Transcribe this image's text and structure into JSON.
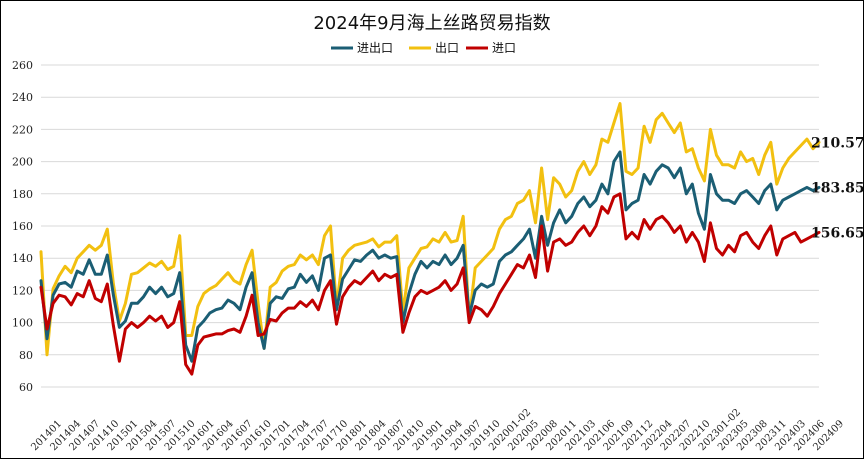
{
  "chart_data": {
    "type": "line",
    "title": "2024年9月海上丝路贸易指数",
    "xlabel": "",
    "ylabel": "",
    "ylim": [
      60,
      260
    ],
    "yticks": [
      60,
      80,
      100,
      120,
      140,
      160,
      180,
      200,
      220,
      240,
      260
    ],
    "grid": true,
    "legend_position": "top",
    "x_tick_labels": [
      "201401",
      "201404",
      "201407",
      "201410",
      "201501",
      "201504",
      "201507",
      "201510",
      "201601",
      "201604",
      "201607",
      "201610",
      "201701",
      "201704",
      "201707",
      "201710",
      "201801",
      "201804",
      "201807",
      "201810",
      "201901",
      "201904",
      "201907",
      "201910",
      "202001-02",
      "202005",
      "202008",
      "202011",
      "202103",
      "202106",
      "202109",
      "202112",
      "202204",
      "202207",
      "202210",
      "202301-02",
      "202305",
      "202308",
      "202311",
      "202403",
      "202406",
      "202409"
    ],
    "series": [
      {
        "name": "进出口",
        "color": "#1b5e74",
        "end_label": "183.85",
        "values": [
          126,
          90,
          117,
          124,
          125,
          122,
          132,
          130,
          139,
          130,
          130,
          142,
          117,
          97,
          101,
          112,
          112,
          116,
          122,
          118,
          122,
          116,
          118,
          131,
          86,
          76,
          97,
          101,
          106,
          108,
          109,
          114,
          112,
          108,
          122,
          131,
          100,
          84,
          112,
          116,
          115,
          121,
          122,
          130,
          125,
          129,
          120,
          140,
          142,
          108,
          127,
          133,
          139,
          138,
          142,
          145,
          140,
          142,
          140,
          141,
          100,
          118,
          130,
          138,
          134,
          138,
          136,
          142,
          136,
          140,
          148,
          104,
          120,
          124,
          122,
          124,
          138,
          142,
          144,
          148,
          152,
          158,
          140,
          166,
          148,
          162,
          170,
          162,
          166,
          174,
          178,
          172,
          176,
          186,
          180,
          200,
          206,
          170,
          174,
          176,
          192,
          186,
          194,
          198,
          196,
          190,
          196,
          180,
          186,
          168,
          158,
          192,
          180,
          176,
          176,
          174,
          180,
          182,
          178,
          174,
          182,
          186,
          170,
          176,
          178,
          180,
          182,
          184,
          182,
          184
        ]
      },
      {
        "name": "出口",
        "color": "#f2c010",
        "end_label": "210.57",
        "values": [
          144,
          80,
          121,
          129,
          135,
          131,
          140,
          144,
          148,
          145,
          148,
          158,
          124,
          101,
          112,
          130,
          131,
          134,
          137,
          135,
          138,
          133,
          135,
          154,
          92,
          92,
          110,
          118,
          121,
          123,
          127,
          131,
          126,
          124,
          136,
          145,
          112,
          84,
          122,
          125,
          132,
          135,
          136,
          142,
          139,
          142,
          136,
          154,
          160,
          110,
          140,
          145,
          148,
          149,
          150,
          152,
          147,
          150,
          150,
          154,
          106,
          134,
          140,
          146,
          147,
          152,
          150,
          156,
          150,
          151,
          166,
          102,
          134,
          138,
          142,
          146,
          158,
          164,
          166,
          174,
          176,
          182,
          162,
          196,
          164,
          190,
          186,
          178,
          182,
          194,
          200,
          192,
          198,
          214,
          212,
          224,
          236,
          194,
          192,
          196,
          222,
          212,
          226,
          230,
          224,
          218,
          224,
          206,
          208,
          196,
          188,
          220,
          204,
          198,
          198,
          196,
          206,
          200,
          202,
          192,
          204,
          212,
          186,
          196,
          202,
          206,
          210,
          214,
          208,
          212
        ]
      },
      {
        "name": "进口",
        "color": "#c00000",
        "end_label": "156.65",
        "values": [
          122,
          96,
          112,
          117,
          116,
          111,
          118,
          116,
          126,
          115,
          113,
          124,
          98,
          76,
          96,
          100,
          97,
          100,
          104,
          101,
          104,
          97,
          100,
          113,
          74,
          68,
          86,
          91,
          92,
          93,
          93,
          95,
          96,
          94,
          104,
          117,
          92,
          93,
          102,
          101,
          106,
          109,
          109,
          113,
          110,
          114,
          108,
          120,
          126,
          99,
          116,
          122,
          126,
          124,
          128,
          132,
          126,
          130,
          128,
          130,
          94,
          106,
          116,
          120,
          118,
          120,
          122,
          126,
          120,
          124,
          134,
          100,
          110,
          108,
          104,
          110,
          118,
          124,
          130,
          136,
          134,
          142,
          128,
          160,
          132,
          150,
          152,
          148,
          150,
          156,
          160,
          154,
          160,
          172,
          168,
          178,
          180,
          152,
          156,
          152,
          164,
          158,
          164,
          166,
          162,
          156,
          160,
          150,
          156,
          150,
          138,
          162,
          146,
          142,
          148,
          144,
          154,
          156,
          150,
          146,
          154,
          160,
          142,
          152,
          154,
          156,
          150,
          152,
          154,
          156
        ]
      }
    ]
  }
}
